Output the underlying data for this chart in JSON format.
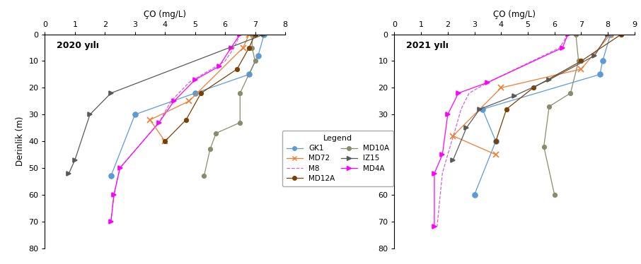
{
  "title_left": "2020 yılı",
  "title_right": "2021 yılı",
  "xlabel": "ÇO (mg/L)",
  "ylabel": "Derinlik (m)",
  "xlim_left": [
    0,
    8
  ],
  "xlim_right": [
    0,
    9
  ],
  "ylim": [
    80,
    0
  ],
  "xticks_left": [
    0,
    1,
    2,
    3,
    4,
    5,
    6,
    7,
    8
  ],
  "xticks_right": [
    0,
    1,
    2,
    3,
    4,
    5,
    6,
    7,
    8,
    9
  ],
  "yticks": [
    0,
    10,
    20,
    30,
    40,
    50,
    60,
    70,
    80
  ],
  "series_2020": {
    "GK1": {
      "depth": [
        0,
        8,
        15,
        22,
        30,
        53
      ],
      "co": [
        7.3,
        7.1,
        6.8,
        5.0,
        3.0,
        2.2
      ],
      "color": "#5b9bd5",
      "marker": "o",
      "linestyle": "-",
      "markersize": 5
    },
    "M8": {
      "depth": [
        0,
        5,
        10,
        18,
        25,
        33,
        50,
        60,
        70
      ],
      "co": [
        6.5,
        6.3,
        6.0,
        4.8,
        4.2,
        3.8,
        2.5,
        2.3,
        2.2
      ],
      "color": "#cc66cc",
      "marker": null,
      "linestyle": "--",
      "markersize": 4
    },
    "MD10A": {
      "depth": [
        0,
        5,
        10,
        22,
        33,
        37,
        43,
        53
      ],
      "co": [
        6.9,
        6.9,
        7.0,
        6.5,
        6.5,
        5.7,
        5.5,
        5.3
      ],
      "color": "#8b8b6a",
      "marker": "o",
      "linestyle": "-",
      "markersize": 4
    },
    "MD4A": {
      "depth": [
        0,
        5,
        12,
        17,
        25,
        33,
        50,
        60,
        70
      ],
      "co": [
        6.5,
        6.2,
        5.8,
        5.0,
        4.3,
        3.8,
        2.5,
        2.3,
        2.2
      ],
      "color": "#ff00ff",
      "marker": ">",
      "linestyle": "-",
      "markersize": 5
    },
    "MD72": {
      "depth": [
        0,
        5,
        25,
        32,
        40
      ],
      "co": [
        6.8,
        6.6,
        4.8,
        3.5,
        4.0
      ],
      "color": "#ed7d31",
      "marker": "x",
      "linestyle": "-",
      "markersize": 6
    },
    "MD12A": {
      "depth": [
        0,
        5,
        13,
        22,
        32,
        40
      ],
      "co": [
        7.0,
        6.8,
        6.4,
        5.2,
        4.7,
        4.0
      ],
      "color": "#7b3f00",
      "marker": "o",
      "linestyle": "-",
      "markersize": 4
    },
    "IZ15": {
      "depth": [
        0,
        22,
        30,
        47,
        52
      ],
      "co": [
        7.3,
        2.2,
        1.5,
        1.0,
        0.8
      ],
      "color": "#595959",
      "marker": ">",
      "linestyle": "-",
      "markersize": 5
    }
  },
  "series_2021": {
    "GK1": {
      "depth": [
        0,
        10,
        15,
        28,
        40,
        60
      ],
      "co": [
        8.1,
        7.8,
        7.7,
        3.3,
        3.8,
        3.0
      ],
      "color": "#5b9bd5",
      "marker": "o",
      "linestyle": "-",
      "markersize": 5
    },
    "M8": {
      "depth": [
        0,
        5,
        18,
        22,
        28,
        35,
        45,
        52,
        72
      ],
      "co": [
        6.5,
        6.2,
        3.5,
        2.8,
        2.5,
        2.3,
        2.0,
        1.8,
        1.6
      ],
      "color": "#cc66cc",
      "marker": null,
      "linestyle": "--",
      "markersize": 4
    },
    "MD10A": {
      "depth": [
        0,
        10,
        22,
        27,
        42,
        60
      ],
      "co": [
        6.8,
        6.9,
        6.6,
        5.8,
        5.6,
        6.0
      ],
      "color": "#8b8b6a",
      "marker": "o",
      "linestyle": "-",
      "markersize": 4
    },
    "MD4A": {
      "depth": [
        0,
        5,
        18,
        22,
        30,
        45,
        52,
        72
      ],
      "co": [
        6.5,
        6.3,
        3.5,
        2.4,
        2.0,
        1.8,
        1.5,
        1.5
      ],
      "color": "#ff00ff",
      "marker": ">",
      "linestyle": "-",
      "markersize": 5
    },
    "MD72": {
      "depth": [
        0,
        13,
        20,
        38,
        45
      ],
      "co": [
        8.1,
        7.0,
        4.0,
        2.2,
        3.8
      ],
      "color": "#ed7d31",
      "marker": "x",
      "linestyle": "-",
      "markersize": 6
    },
    "MD12A": {
      "depth": [
        0,
        10,
        20,
        28,
        40
      ],
      "co": [
        8.5,
        7.0,
        5.2,
        4.2,
        3.8
      ],
      "color": "#7b3f00",
      "marker": "o",
      "linestyle": "-",
      "markersize": 4
    },
    "IZ15": {
      "depth": [
        0,
        8,
        17,
        23,
        28,
        35,
        47
      ],
      "co": [
        8.0,
        7.5,
        5.8,
        4.5,
        3.2,
        2.7,
        2.2
      ],
      "color": "#595959",
      "marker": ">",
      "linestyle": "-",
      "markersize": 5
    }
  },
  "legend_entries": [
    {
      "label": "GK1",
      "color": "#5b9bd5",
      "marker": "o",
      "linestyle": "-"
    },
    {
      "label": "MD72",
      "color": "#ed7d31",
      "marker": "x",
      "linestyle": "-"
    },
    {
      "label": "M8",
      "color": "#cc66cc",
      "marker": null,
      "linestyle": "--"
    },
    {
      "label": "MD12A",
      "color": "#7b3f00",
      "marker": "o",
      "linestyle": "-"
    },
    {
      "label": "MD10A",
      "color": "#8b8b6a",
      "marker": "o",
      "linestyle": "-"
    },
    {
      "label": "IZ15",
      "color": "#595959",
      "marker": ">",
      "linestyle": "-"
    },
    {
      "label": "MD4A",
      "color": "#ff00ff",
      "marker": ">",
      "linestyle": "-"
    }
  ]
}
